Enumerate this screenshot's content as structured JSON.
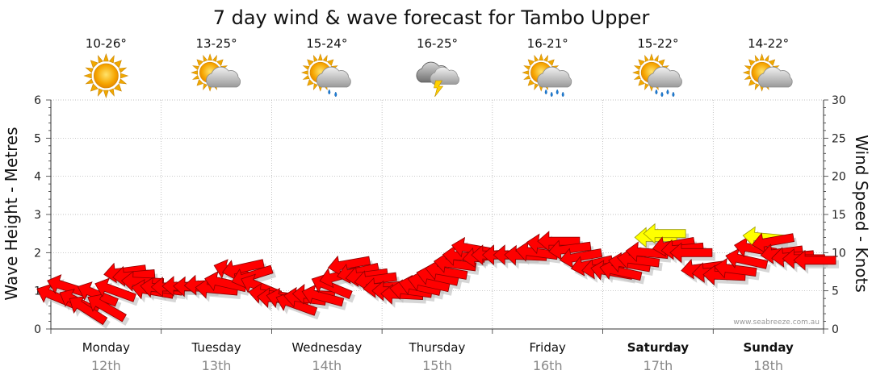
{
  "chart_data": {
    "type": "line",
    "title": "7 day wind & wave forecast for Tambo Upper",
    "ylabel": "Wave Height - Metres",
    "y2label": "Wind Speed - Knots",
    "ylim": [
      0,
      6
    ],
    "y2lim": [
      0,
      30
    ],
    "yticks": [
      "0",
      "1",
      "2",
      "3",
      "4",
      "5",
      "6"
    ],
    "y2ticks": [
      "0",
      "5",
      "10",
      "15",
      "20",
      "25",
      "30"
    ],
    "grid": true,
    "credit": "www.seabreeze.com.au",
    "days": [
      {
        "name": "Monday",
        "date": "12th",
        "temp": "10-26°",
        "icon": "sun-icon",
        "bold": false
      },
      {
        "name": "Tuesday",
        "date": "13th",
        "temp": "13-25°",
        "icon": "partly-cloudy-icon",
        "bold": false
      },
      {
        "name": "Wednesday",
        "date": "14th",
        "temp": "15-24°",
        "icon": "partly-cloudy-showers-icon",
        "bold": false
      },
      {
        "name": "Thursday",
        "date": "15th",
        "temp": "16-25°",
        "icon": "thunderstorm-icon",
        "bold": false
      },
      {
        "name": "Friday",
        "date": "16th",
        "temp": "16-21°",
        "icon": "partly-cloudy-rain-icon",
        "bold": false
      },
      {
        "name": "Saturday",
        "date": "17th",
        "temp": "15-22°",
        "icon": "partly-cloudy-rain-icon",
        "bold": true
      },
      {
        "name": "Sunday",
        "date": "18th",
        "temp": "14-22°",
        "icon": "partly-cloudy-icon",
        "bold": true
      }
    ],
    "series": [
      {
        "type": "wind-arrows",
        "units": "knots",
        "x_unit": "days from Monday 00:00",
        "points": [
          {
            "x": 0.05,
            "knots": 4.2,
            "dir": 0.9,
            "gust": false
          },
          {
            "x": 0.15,
            "knots": 5.5,
            "dir": 0.7,
            "gust": false
          },
          {
            "x": 0.25,
            "knots": 3.5,
            "dir": 1.1,
            "gust": false
          },
          {
            "x": 0.33,
            "knots": 2.5,
            "dir": 1.3,
            "gust": false
          },
          {
            "x": 0.42,
            "knots": 4.5,
            "dir": 0.9,
            "gust": false
          },
          {
            "x": 0.5,
            "knots": 2.8,
            "dir": 1.2,
            "gust": false
          },
          {
            "x": 0.58,
            "knots": 5.0,
            "dir": 0.8,
            "gust": false
          },
          {
            "x": 0.67,
            "knots": 7.5,
            "dir": -0.3,
            "gust": false
          },
          {
            "x": 0.75,
            "knots": 7.0,
            "dir": -0.2,
            "gust": false
          },
          {
            "x": 0.83,
            "knots": 6.2,
            "dir": 0.1,
            "gust": false
          },
          {
            "x": 0.92,
            "knots": 5.0,
            "dir": 0.4,
            "gust": false
          },
          {
            "x": 1.0,
            "knots": 5.3,
            "dir": 0.3,
            "gust": false
          },
          {
            "x": 1.1,
            "knots": 5.5,
            "dir": 0.0,
            "gust": false
          },
          {
            "x": 1.2,
            "knots": 5.6,
            "dir": 0.0,
            "gust": false
          },
          {
            "x": 1.3,
            "knots": 5.5,
            "dir": 0.1,
            "gust": false
          },
          {
            "x": 1.4,
            "knots": 5.8,
            "dir": -0.1,
            "gust": false
          },
          {
            "x": 1.5,
            "knots": 5.2,
            "dir": 0.2,
            "gust": false
          },
          {
            "x": 1.58,
            "knots": 6.0,
            "dir": 0.5,
            "gust": false
          },
          {
            "x": 1.66,
            "knots": 7.5,
            "dir": 0.7,
            "gust": false
          },
          {
            "x": 1.74,
            "knots": 8.0,
            "dir": -0.5,
            "gust": false
          },
          {
            "x": 1.82,
            "knots": 7.0,
            "dir": -0.7,
            "gust": false
          },
          {
            "x": 1.9,
            "knots": 5.5,
            "dir": 0.9,
            "gust": false
          },
          {
            "x": 1.98,
            "knots": 4.5,
            "dir": 0.3,
            "gust": false
          },
          {
            "x": 2.06,
            "knots": 4.0,
            "dir": 0.2,
            "gust": false
          },
          {
            "x": 2.14,
            "knots": 3.8,
            "dir": 0.5,
            "gust": false
          },
          {
            "x": 2.22,
            "knots": 3.2,
            "dir": 0.8,
            "gust": false
          },
          {
            "x": 2.3,
            "knots": 4.0,
            "dir": 0.3,
            "gust": false
          },
          {
            "x": 2.38,
            "knots": 4.5,
            "dir": 0.1,
            "gust": false
          },
          {
            "x": 2.46,
            "knots": 4.2,
            "dir": 0.6,
            "gust": false
          },
          {
            "x": 2.54,
            "knots": 5.5,
            "dir": 0.9,
            "gust": false
          },
          {
            "x": 2.62,
            "knots": 7.0,
            "dir": -0.6,
            "gust": false
          },
          {
            "x": 2.7,
            "knots": 8.5,
            "dir": -0.4,
            "gust": false
          },
          {
            "x": 2.78,
            "knots": 7.5,
            "dir": -0.5,
            "gust": false
          },
          {
            "x": 2.86,
            "knots": 7.0,
            "dir": -0.3,
            "gust": false
          },
          {
            "x": 2.94,
            "knots": 6.5,
            "dir": -0.3,
            "gust": false
          },
          {
            "x": 3.02,
            "knots": 5.5,
            "dir": -0.2,
            "gust": false
          },
          {
            "x": 3.1,
            "knots": 5.0,
            "dir": 0.0,
            "gust": false
          },
          {
            "x": 3.18,
            "knots": 4.5,
            "dir": 0.1,
            "gust": false
          },
          {
            "x": 3.26,
            "knots": 5.0,
            "dir": 0.3,
            "gust": false
          },
          {
            "x": 3.34,
            "knots": 5.5,
            "dir": 0.5,
            "gust": false
          },
          {
            "x": 3.42,
            "knots": 6.0,
            "dir": 0.5,
            "gust": false
          },
          {
            "x": 3.5,
            "knots": 6.8,
            "dir": 0.5,
            "gust": false
          },
          {
            "x": 3.58,
            "knots": 7.5,
            "dir": 0.4,
            "gust": false
          },
          {
            "x": 3.66,
            "knots": 8.5,
            "dir": 0.3,
            "gust": false
          },
          {
            "x": 3.74,
            "knots": 9.5,
            "dir": 0.2,
            "gust": false
          },
          {
            "x": 3.82,
            "knots": 10.5,
            "dir": 0.4,
            "gust": false
          },
          {
            "x": 3.92,
            "knots": 9.5,
            "dir": -0.3,
            "gust": false
          },
          {
            "x": 4.0,
            "knots": 9.7,
            "dir": 0.0,
            "gust": false
          },
          {
            "x": 4.1,
            "knots": 9.7,
            "dir": 0.0,
            "gust": false
          },
          {
            "x": 4.2,
            "knots": 9.7,
            "dir": 0.0,
            "gust": false
          },
          {
            "x": 4.3,
            "knots": 9.6,
            "dir": 0.1,
            "gust": false
          },
          {
            "x": 4.4,
            "knots": 10.0,
            "dir": 0.3,
            "gust": false
          },
          {
            "x": 4.5,
            "knots": 11.0,
            "dir": 0.3,
            "gust": false
          },
          {
            "x": 4.6,
            "knots": 11.5,
            "dir": 0.0,
            "gust": false
          },
          {
            "x": 4.7,
            "knots": 10.5,
            "dir": -0.3,
            "gust": false
          },
          {
            "x": 4.8,
            "knots": 9.5,
            "dir": -0.4,
            "gust": false
          },
          {
            "x": 4.9,
            "knots": 8.5,
            "dir": -0.5,
            "gust": false
          },
          {
            "x": 5.0,
            "knots": 8.0,
            "dir": -0.3,
            "gust": false
          },
          {
            "x": 5.08,
            "knots": 7.5,
            "dir": 0.4,
            "gust": false
          },
          {
            "x": 5.16,
            "knots": 7.5,
            "dir": 0.5,
            "gust": false
          },
          {
            "x": 5.24,
            "knots": 8.5,
            "dir": 0.4,
            "gust": false
          },
          {
            "x": 5.32,
            "knots": 9.0,
            "dir": 0.3,
            "gust": false
          },
          {
            "x": 5.4,
            "knots": 10.0,
            "dir": 0.2,
            "gust": false
          },
          {
            "x": 5.48,
            "knots": 12.0,
            "dir": 0.0,
            "gust": true
          },
          {
            "x": 5.56,
            "knots": 12.5,
            "dir": 0.0,
            "gust": true
          },
          {
            "x": 5.64,
            "knots": 11.0,
            "dir": -0.4,
            "gust": false
          },
          {
            "x": 5.72,
            "knots": 10.5,
            "dir": -0.2,
            "gust": false
          },
          {
            "x": 5.8,
            "knots": 10.0,
            "dir": 0.0,
            "gust": false
          },
          {
            "x": 5.9,
            "knots": 8.0,
            "dir": -0.3,
            "gust": false
          },
          {
            "x": 6.0,
            "knots": 7.5,
            "dir": -0.2,
            "gust": false
          },
          {
            "x": 6.1,
            "knots": 7.0,
            "dir": 0.1,
            "gust": false
          },
          {
            "x": 6.2,
            "knots": 7.8,
            "dir": 0.3,
            "gust": false
          },
          {
            "x": 6.3,
            "knots": 9.0,
            "dir": 0.5,
            "gust": false
          },
          {
            "x": 6.38,
            "knots": 10.5,
            "dir": 0.4,
            "gust": false
          },
          {
            "x": 6.46,
            "knots": 12.0,
            "dir": 0.2,
            "gust": true
          },
          {
            "x": 6.54,
            "knots": 11.5,
            "dir": -0.4,
            "gust": false
          },
          {
            "x": 6.62,
            "knots": 10.0,
            "dir": -0.3,
            "gust": false
          },
          {
            "x": 6.72,
            "knots": 9.5,
            "dir": -0.2,
            "gust": false
          },
          {
            "x": 6.82,
            "knots": 9.2,
            "dir": 0.0,
            "gust": false
          },
          {
            "x": 6.92,
            "knots": 9.0,
            "dir": 0.0,
            "gust": false
          }
        ]
      }
    ],
    "colors": {
      "arrow": "#ff0000",
      "arrow_stroke": "#8b0000",
      "gust": "#ffff00",
      "gust_stroke": "#999900",
      "grid": "#aaaaaa",
      "shadow": "#bbbbbb"
    }
  }
}
